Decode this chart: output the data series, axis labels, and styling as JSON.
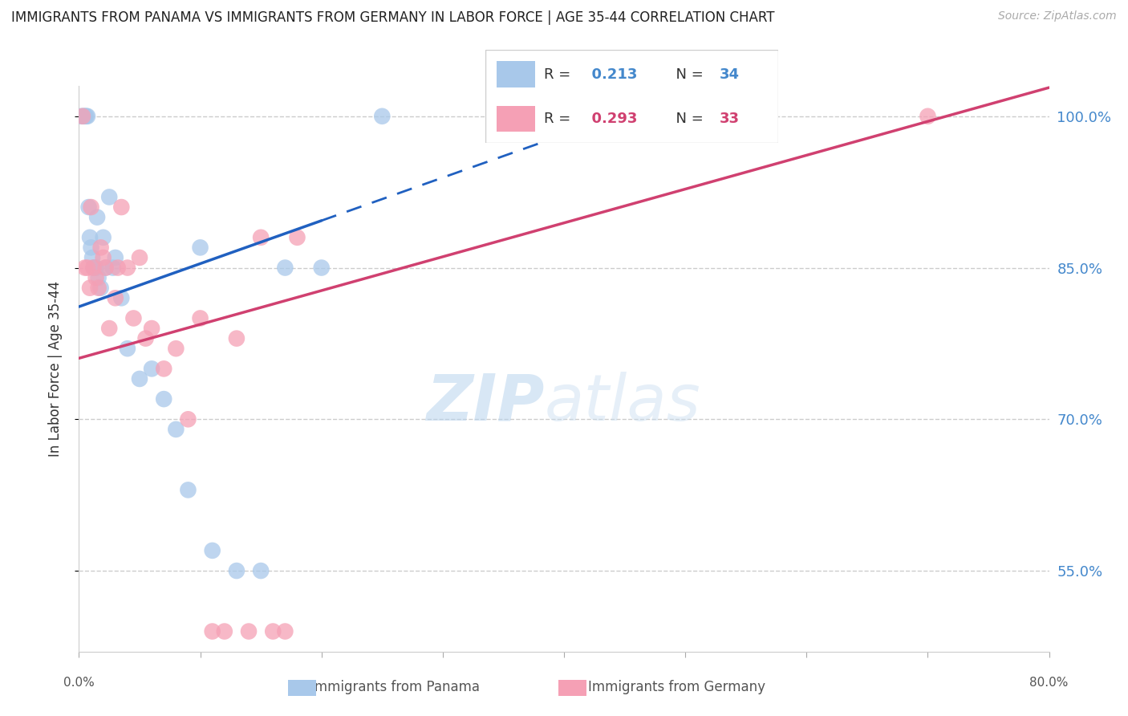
{
  "title": "IMMIGRANTS FROM PANAMA VS IMMIGRANTS FROM GERMANY IN LABOR FORCE | AGE 35-44 CORRELATION CHART",
  "source": "Source: ZipAtlas.com",
  "ylabel": "In Labor Force | Age 35-44",
  "xlim": [
    0.0,
    80.0
  ],
  "ylim": [
    47.0,
    103.0
  ],
  "yticks": [
    55.0,
    70.0,
    85.0,
    100.0
  ],
  "ytick_labels": [
    "55.0%",
    "70.0%",
    "85.0%",
    "100.0%"
  ],
  "panama_color": "#a8c8ea",
  "germany_color": "#f5a0b5",
  "panama_R": 0.213,
  "panama_N": 34,
  "germany_R": 0.293,
  "germany_N": 33,
  "trend_panama_color": "#2060c0",
  "trend_germany_color": "#d04070",
  "watermark_zip": "ZIP",
  "watermark_atlas": "atlas",
  "panama_x": [
    0.2,
    0.4,
    0.5,
    0.6,
    0.7,
    0.8,
    0.9,
    1.0,
    1.1,
    1.2,
    1.3,
    1.4,
    1.5,
    1.6,
    1.8,
    2.0,
    2.2,
    2.5,
    2.8,
    3.0,
    3.5,
    4.0,
    5.0,
    6.0,
    7.0,
    8.0,
    9.0,
    10.0,
    11.0,
    13.0,
    15.0,
    17.0,
    20.0,
    25.0
  ],
  "panama_y": [
    100.0,
    100.0,
    100.0,
    100.0,
    100.0,
    91.0,
    88.0,
    87.0,
    86.0,
    85.0,
    85.0,
    85.0,
    90.0,
    84.0,
    83.0,
    88.0,
    85.0,
    92.0,
    85.0,
    86.0,
    82.0,
    77.0,
    74.0,
    75.0,
    72.0,
    69.0,
    63.0,
    87.0,
    57.0,
    55.0,
    55.0,
    85.0,
    85.0,
    100.0
  ],
  "germany_x": [
    0.3,
    0.5,
    0.7,
    0.9,
    1.0,
    1.2,
    1.4,
    1.6,
    1.8,
    2.0,
    2.2,
    2.5,
    3.0,
    3.2,
    3.5,
    4.0,
    4.5,
    5.0,
    5.5,
    6.0,
    7.0,
    8.0,
    9.0,
    10.0,
    11.0,
    12.0,
    13.0,
    14.0,
    15.0,
    16.0,
    17.0,
    18.0,
    70.0
  ],
  "germany_y": [
    100.0,
    85.0,
    85.0,
    83.0,
    91.0,
    85.0,
    84.0,
    83.0,
    87.0,
    86.0,
    85.0,
    79.0,
    82.0,
    85.0,
    91.0,
    85.0,
    80.0,
    86.0,
    78.0,
    79.0,
    75.0,
    77.0,
    70.0,
    80.0,
    49.0,
    49.0,
    78.0,
    49.0,
    88.0,
    49.0,
    49.0,
    88.0,
    100.0
  ],
  "trend_panama_x0": 0.0,
  "trend_panama_x_solid_end": 20.0,
  "trend_panama_x_dashed_end": 80.0,
  "trend_germany_x0": 0.0,
  "trend_germany_x_end": 80.0
}
